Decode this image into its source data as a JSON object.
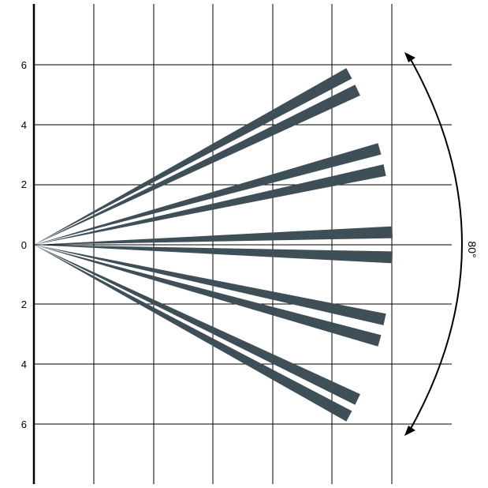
{
  "diagram": {
    "y_tick_labels": [
      "6",
      "4",
      "2",
      "0",
      "2",
      "4",
      "6"
    ],
    "angle_label": "80°",
    "beams": [
      {
        "angle_deg": 28.5
      },
      {
        "angle_deg": 25.5
      },
      {
        "angle_deg": 15.5
      },
      {
        "angle_deg": 12.0
      },
      {
        "angle_deg": 2.0
      },
      {
        "angle_deg": -2.0
      },
      {
        "angle_deg": -12.0
      },
      {
        "angle_deg": -15.5
      },
      {
        "angle_deg": -25.5
      },
      {
        "angle_deg": -28.5
      }
    ],
    "colors": {
      "beam": "#3f4f58",
      "grid": "#000000",
      "axis": "#000000",
      "arc": "#000000",
      "background": "#ffffff"
    }
  }
}
